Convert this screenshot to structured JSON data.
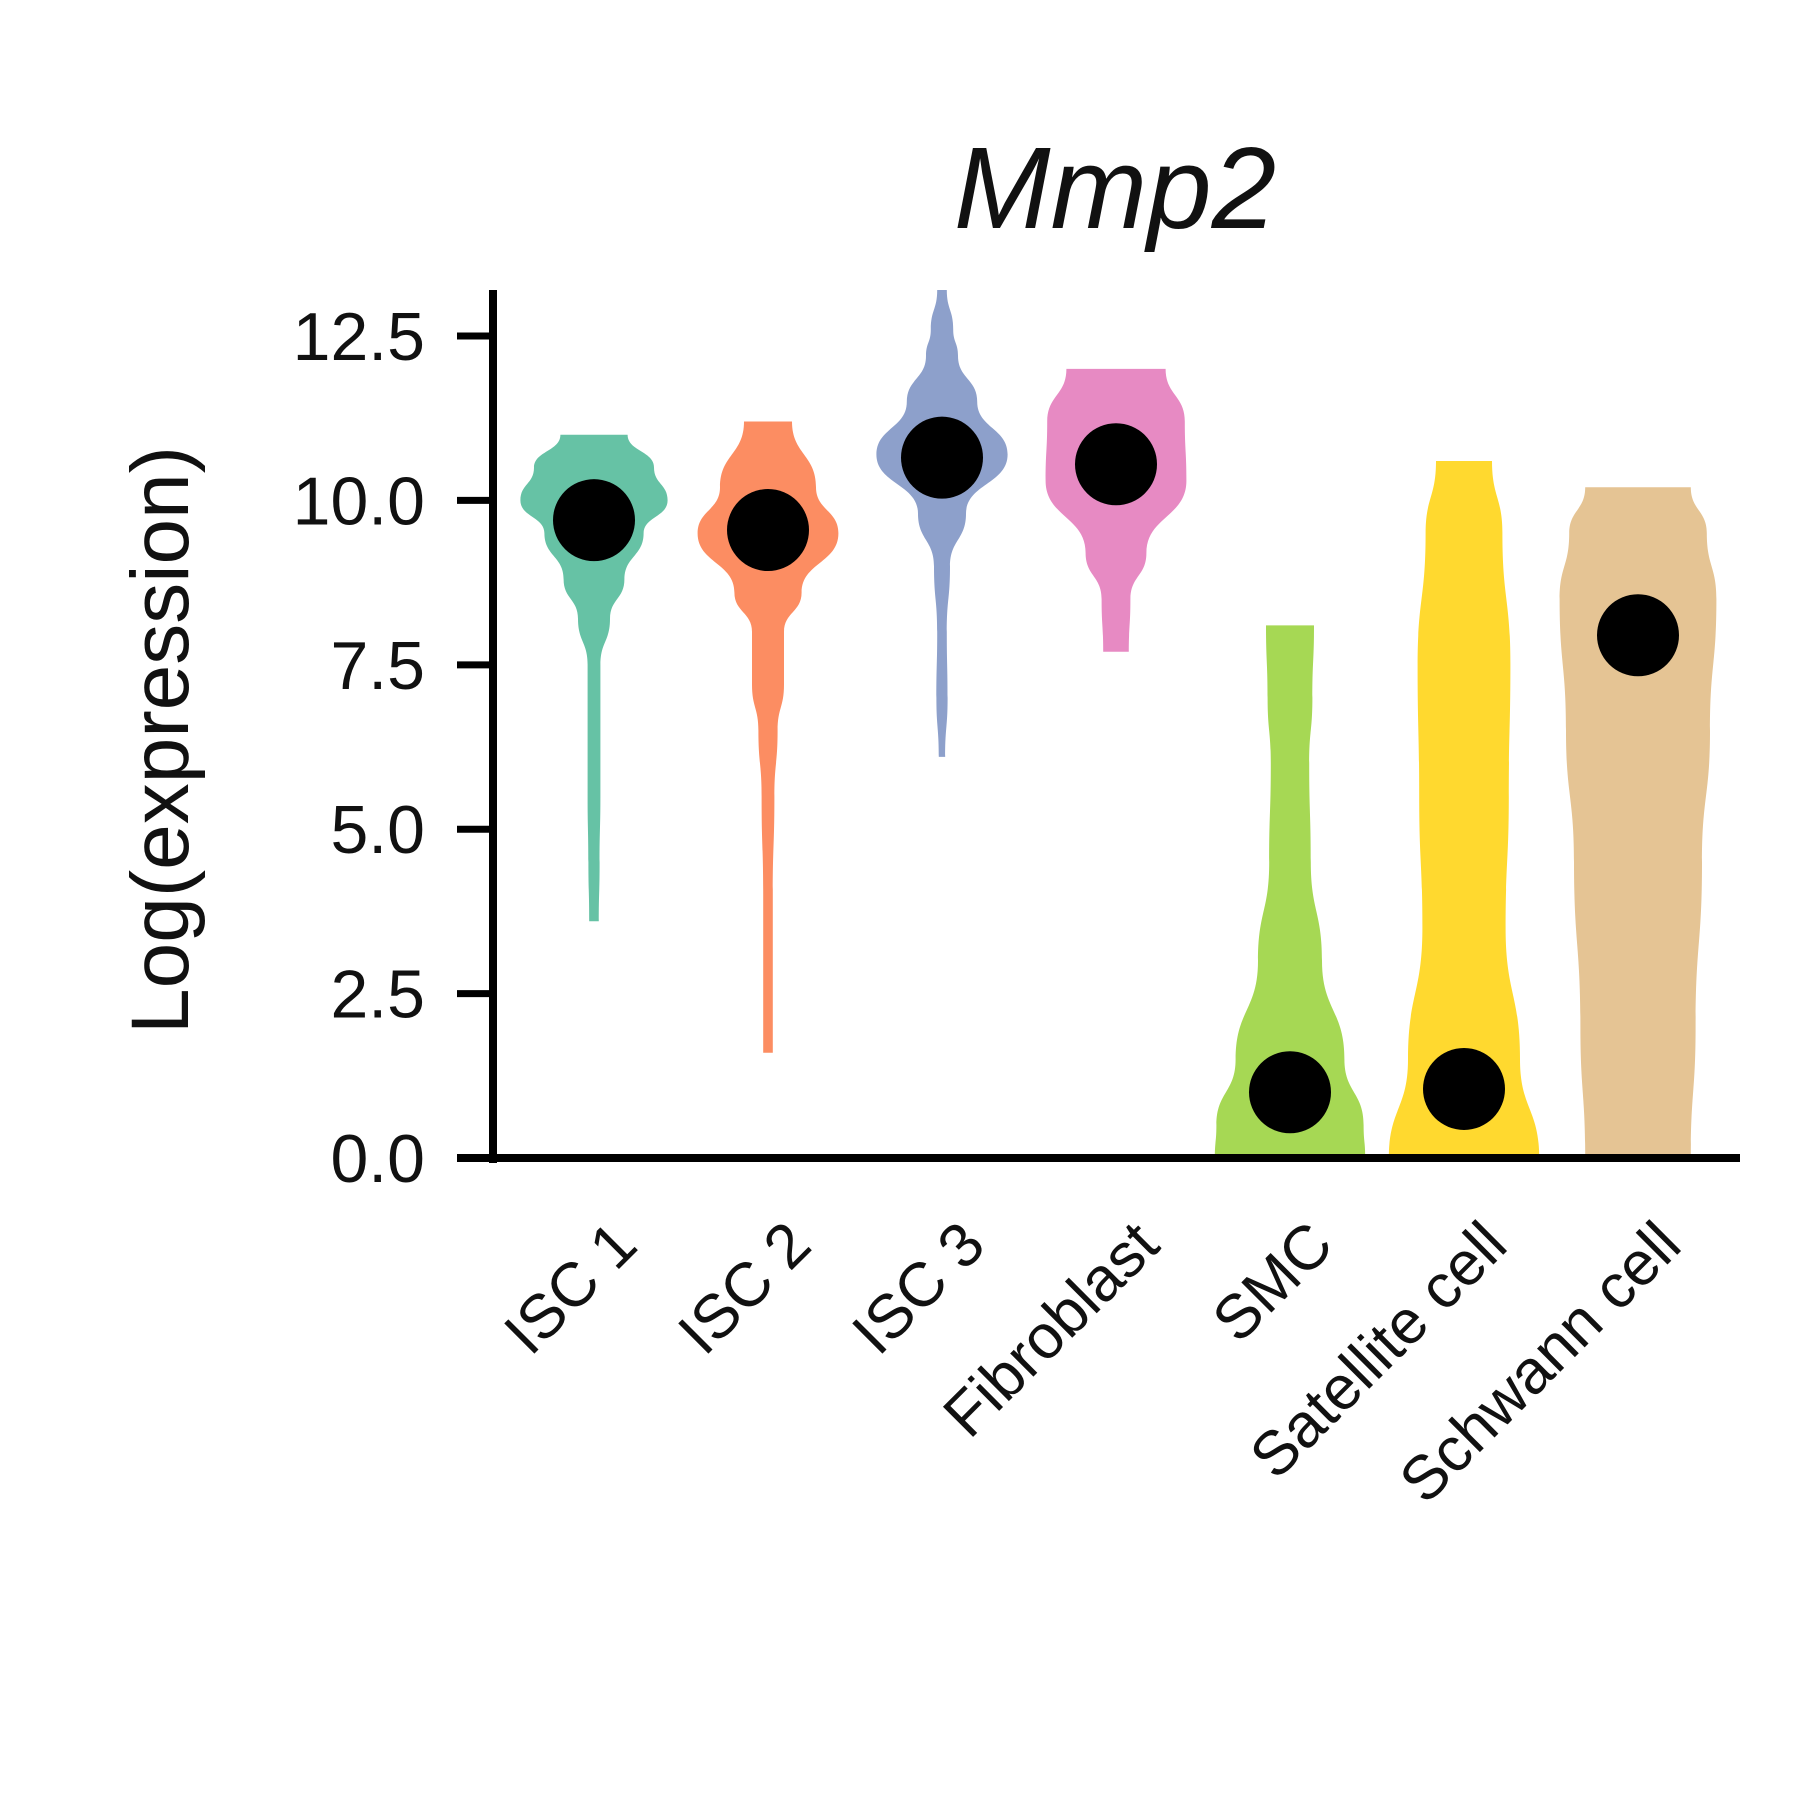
{
  "chart_data": {
    "type": "violin",
    "title": "Mmp2",
    "xlabel": "",
    "ylabel": "Log(expression)",
    "ylim": [
      0,
      13.2
    ],
    "yticks": [
      "0.0",
      "2.5",
      "5.0",
      "7.5",
      "10.0",
      "12.5"
    ],
    "categories": [
      "ISC 1",
      "ISC 2",
      "ISC 3",
      "Fibroblast",
      "SMC",
      "Satellite cell",
      "Schwann cell"
    ],
    "grid": false,
    "legend": "none",
    "series": [
      {
        "category": "ISC 1",
        "color": "#66C2A5",
        "mean": 9.7,
        "profile": [
          [
            3.6,
            0.06
          ],
          [
            4.5,
            0.07
          ],
          [
            5.5,
            0.08
          ],
          [
            6.5,
            0.08
          ],
          [
            7.5,
            0.08
          ],
          [
            8.2,
            0.2
          ],
          [
            8.8,
            0.38
          ],
          [
            9.5,
            0.62
          ],
          [
            10.0,
            0.92
          ],
          [
            10.5,
            0.75
          ],
          [
            11.0,
            0.42
          ]
        ]
      },
      {
        "category": "ISC 2",
        "color": "#FC8D62",
        "mean": 9.55,
        "profile": [
          [
            1.6,
            0.06
          ],
          [
            2.5,
            0.06
          ],
          [
            4.0,
            0.06
          ],
          [
            5.5,
            0.08
          ],
          [
            6.5,
            0.12
          ],
          [
            7.2,
            0.2
          ],
          [
            8.0,
            0.2
          ],
          [
            8.6,
            0.42
          ],
          [
            9.5,
            0.88
          ],
          [
            10.2,
            0.6
          ],
          [
            11.2,
            0.3
          ]
        ]
      },
      {
        "category": "ISC 3",
        "color": "#8DA0CB",
        "mean": 10.65,
        "profile": [
          [
            6.1,
            0.04
          ],
          [
            7.0,
            0.07
          ],
          [
            8.0,
            0.06
          ],
          [
            9.0,
            0.1
          ],
          [
            9.8,
            0.3
          ],
          [
            10.7,
            0.82
          ],
          [
            11.5,
            0.44
          ],
          [
            12.2,
            0.2
          ],
          [
            12.6,
            0.14
          ],
          [
            13.2,
            0.06
          ]
        ]
      },
      {
        "category": "Fibroblast",
        "color": "#E78AC3",
        "mean": 10.55,
        "profile": [
          [
            7.7,
            0.16
          ],
          [
            8.5,
            0.18
          ],
          [
            9.2,
            0.38
          ],
          [
            10.3,
            0.88
          ],
          [
            11.2,
            0.86
          ],
          [
            12.0,
            0.62
          ]
        ]
      },
      {
        "category": "SMC",
        "color": "#A6D854",
        "mean": 1.0,
        "profile": [
          [
            0.0,
            0.94
          ],
          [
            0.5,
            0.92
          ],
          [
            1.5,
            0.68
          ],
          [
            3.0,
            0.4
          ],
          [
            4.5,
            0.26
          ],
          [
            6.0,
            0.24
          ],
          [
            7.0,
            0.28
          ],
          [
            8.1,
            0.3
          ]
        ]
      },
      {
        "category": "Satellite cell",
        "color": "#FFD92F",
        "mean": 1.05,
        "profile": [
          [
            0.0,
            0.94
          ],
          [
            1.5,
            0.7
          ],
          [
            3.5,
            0.52
          ],
          [
            5.5,
            0.56
          ],
          [
            7.5,
            0.58
          ],
          [
            9.5,
            0.48
          ],
          [
            10.6,
            0.35
          ]
        ]
      },
      {
        "category": "Schwann cell",
        "color": "#E5C494",
        "mean": 7.95,
        "profile": [
          [
            0.0,
            0.66
          ],
          [
            2.0,
            0.72
          ],
          [
            4.5,
            0.8
          ],
          [
            6.5,
            0.9
          ],
          [
            8.5,
            0.98
          ],
          [
            9.5,
            0.86
          ],
          [
            10.2,
            0.66
          ]
        ]
      }
    ]
  }
}
